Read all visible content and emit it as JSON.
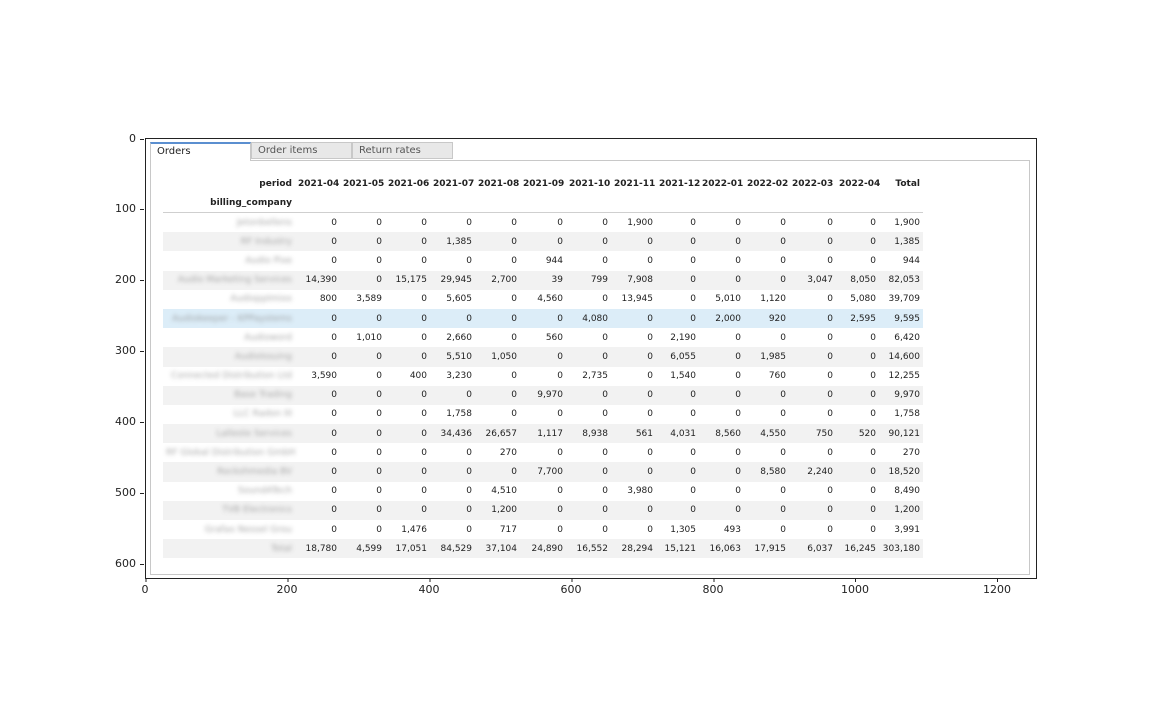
{
  "axes": {
    "yticks": [
      "0",
      "100",
      "200",
      "300",
      "400",
      "500",
      "600"
    ],
    "xticks": [
      "0",
      "200",
      "400",
      "600",
      "800",
      "1000",
      "1200"
    ]
  },
  "tabs": [
    {
      "label": "Orders",
      "active": true
    },
    {
      "label": "Order items",
      "active": false
    },
    {
      "label": "Return rates",
      "active": false
    }
  ],
  "table": {
    "period_label": "period",
    "index_label": "billing_company",
    "columns": [
      "2021-04",
      "2021-05",
      "2021-06",
      "2021-07",
      "2021-08",
      "2021-09",
      "2021-10",
      "2021-11",
      "2021-12",
      "2022-01",
      "2022-02",
      "2022-03",
      "2022-04",
      "Total"
    ],
    "highlight_row": 5,
    "rows": [
      {
        "company": "Jetonbellens",
        "values": [
          "0",
          "0",
          "0",
          "0",
          "0",
          "0",
          "0",
          "1,900",
          "0",
          "0",
          "0",
          "0",
          "0",
          "1,900"
        ]
      },
      {
        "company": "RF Industry",
        "values": [
          "0",
          "0",
          "0",
          "1,385",
          "0",
          "0",
          "0",
          "0",
          "0",
          "0",
          "0",
          "0",
          "0",
          "1,385"
        ]
      },
      {
        "company": "Audio Pixe",
        "values": [
          "0",
          "0",
          "0",
          "0",
          "0",
          "944",
          "0",
          "0",
          "0",
          "0",
          "0",
          "0",
          "0",
          "944"
        ]
      },
      {
        "company": "Audio Marketing Services",
        "values": [
          "14,390",
          "0",
          "15,175",
          "29,945",
          "2,700",
          "39",
          "799",
          "7,908",
          "0",
          "0",
          "0",
          "3,047",
          "8,050",
          "82,053"
        ]
      },
      {
        "company": "AudioppImixx",
        "values": [
          "800",
          "3,589",
          "0",
          "5,605",
          "0",
          "4,560",
          "0",
          "13,945",
          "0",
          "5,010",
          "1,120",
          "0",
          "5,080",
          "39,709"
        ]
      },
      {
        "company": "Audiokeeper - KPPaystems",
        "values": [
          "0",
          "0",
          "0",
          "0",
          "0",
          "0",
          "4,080",
          "0",
          "0",
          "2,000",
          "920",
          "0",
          "2,595",
          "9,595"
        ]
      },
      {
        "company": "Audioword",
        "values": [
          "0",
          "1,010",
          "0",
          "2,660",
          "0",
          "560",
          "0",
          "0",
          "2,190",
          "0",
          "0",
          "0",
          "0",
          "6,420"
        ]
      },
      {
        "company": "AudioIssuing",
        "values": [
          "0",
          "0",
          "0",
          "5,510",
          "1,050",
          "0",
          "0",
          "0",
          "6,055",
          "0",
          "1,985",
          "0",
          "0",
          "14,600"
        ]
      },
      {
        "company": "Connected Distribution Ltd",
        "values": [
          "3,590",
          "0",
          "400",
          "3,230",
          "0",
          "0",
          "2,735",
          "0",
          "1,540",
          "0",
          "760",
          "0",
          "0",
          "12,255"
        ]
      },
      {
        "company": "Base Trading",
        "values": [
          "0",
          "0",
          "0",
          "0",
          "0",
          "9,970",
          "0",
          "0",
          "0",
          "0",
          "0",
          "0",
          "0",
          "9,970"
        ]
      },
      {
        "company": "LLC Radon III",
        "values": [
          "0",
          "0",
          "0",
          "1,758",
          "0",
          "0",
          "0",
          "0",
          "0",
          "0",
          "0",
          "0",
          "0",
          "1,758"
        ]
      },
      {
        "company": "Lalleste Services",
        "values": [
          "0",
          "0",
          "0",
          "34,436",
          "26,657",
          "1,117",
          "8,938",
          "561",
          "4,031",
          "8,560",
          "4,550",
          "750",
          "520",
          "90,121"
        ]
      },
      {
        "company": "RF Global Distribution GmbH",
        "values": [
          "0",
          "0",
          "0",
          "0",
          "270",
          "0",
          "0",
          "0",
          "0",
          "0",
          "0",
          "0",
          "0",
          "270"
        ]
      },
      {
        "company": "Rockshmedia BV",
        "values": [
          "0",
          "0",
          "0",
          "0",
          "0",
          "7,700",
          "0",
          "0",
          "0",
          "0",
          "8,580",
          "2,240",
          "0",
          "18,520"
        ]
      },
      {
        "company": "SoundATech",
        "values": [
          "0",
          "0",
          "0",
          "0",
          "4,510",
          "0",
          "0",
          "3,980",
          "0",
          "0",
          "0",
          "0",
          "0",
          "8,490"
        ]
      },
      {
        "company": "TVB Electronics",
        "values": [
          "0",
          "0",
          "0",
          "0",
          "1,200",
          "0",
          "0",
          "0",
          "0",
          "0",
          "0",
          "0",
          "0",
          "1,200"
        ]
      },
      {
        "company": "Grafax Nessel Grou",
        "values": [
          "0",
          "0",
          "1,476",
          "0",
          "717",
          "0",
          "0",
          "0",
          "1,305",
          "493",
          "0",
          "0",
          "0",
          "3,991"
        ]
      },
      {
        "company": "Total",
        "values": [
          "18,780",
          "4,599",
          "17,051",
          "84,529",
          "37,104",
          "24,890",
          "16,552",
          "28,294",
          "15,121",
          "16,063",
          "17,915",
          "6,037",
          "16,245",
          "303,180"
        ]
      }
    ]
  }
}
